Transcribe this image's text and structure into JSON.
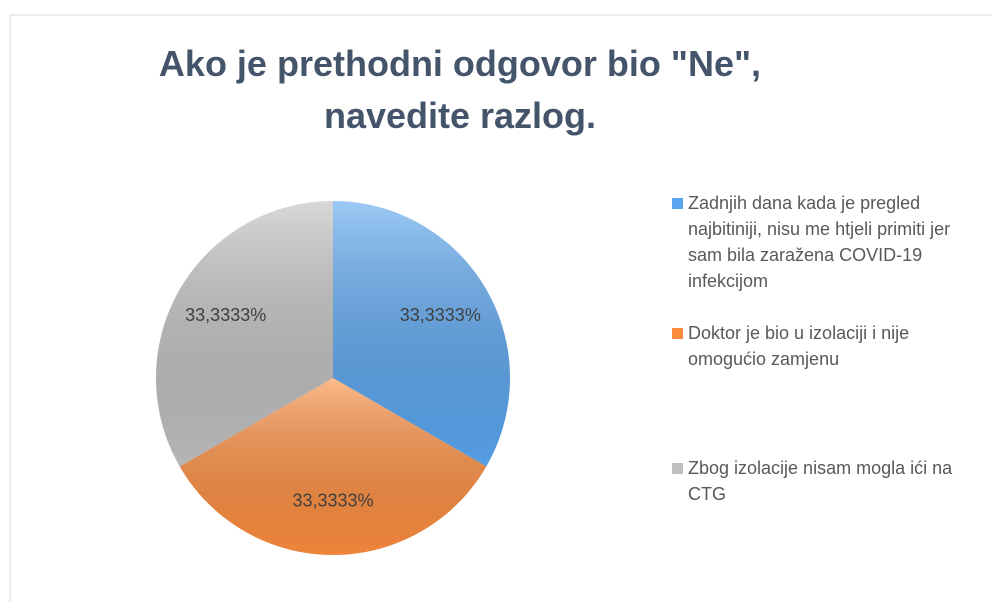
{
  "chart_data": {
    "type": "pie",
    "title": "Ako je prethodni odgovor bio \"Ne\", navedite razlog.",
    "categories": [
      "Zadnjih dana kada je pregled najbitiniji, nisu me htjeli primiti jer sam bila zaražena COVID-19 infekcijom",
      "Doktor je bio u izolaciji i nije omogućio zamjenu",
      "Zbog izolacije nisam mogla ići na CTG"
    ],
    "values": [
      33.3333,
      33.3333,
      33.3333
    ],
    "value_labels": [
      "33,3333%",
      "33,3333%",
      "33,3333%"
    ],
    "colors": [
      "#5aa5ee",
      "#fb8c3e",
      "#bfbfbf"
    ],
    "legend": "right"
  }
}
